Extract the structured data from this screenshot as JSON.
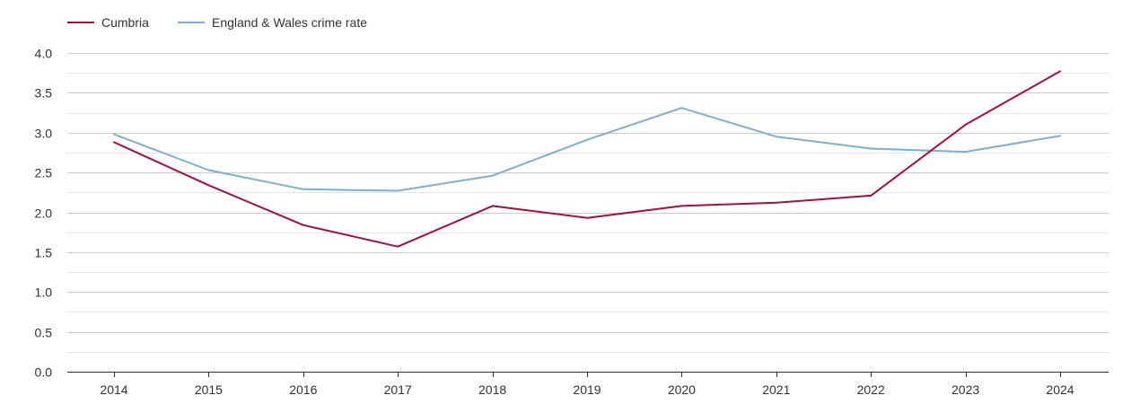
{
  "chart_data": {
    "type": "line",
    "title": "",
    "xlabel": "",
    "ylabel": "",
    "x": [
      "2014",
      "2015",
      "2016",
      "2017",
      "2018",
      "2019",
      "2020",
      "2021",
      "2022",
      "2023",
      "2024"
    ],
    "ylim": [
      0,
      4
    ],
    "y_ticks": [
      "0.0",
      "0.5",
      "1.0",
      "1.5",
      "2.0",
      "2.5",
      "3.0",
      "3.5",
      "4.0"
    ],
    "grid": true,
    "legend_position": "top-left",
    "series": [
      {
        "name": "Cumbria",
        "color": "#a50f3c",
        "values": [
          2.88,
          2.34,
          1.84,
          1.57,
          2.08,
          1.93,
          2.08,
          2.12,
          2.21,
          3.1,
          3.77
        ]
      },
      {
        "name": "England & Wales crime rate",
        "color": "#7bafd4",
        "values": [
          2.98,
          2.53,
          2.29,
          2.27,
          2.46,
          2.91,
          3.31,
          2.95,
          2.8,
          2.76,
          2.96
        ]
      }
    ]
  }
}
